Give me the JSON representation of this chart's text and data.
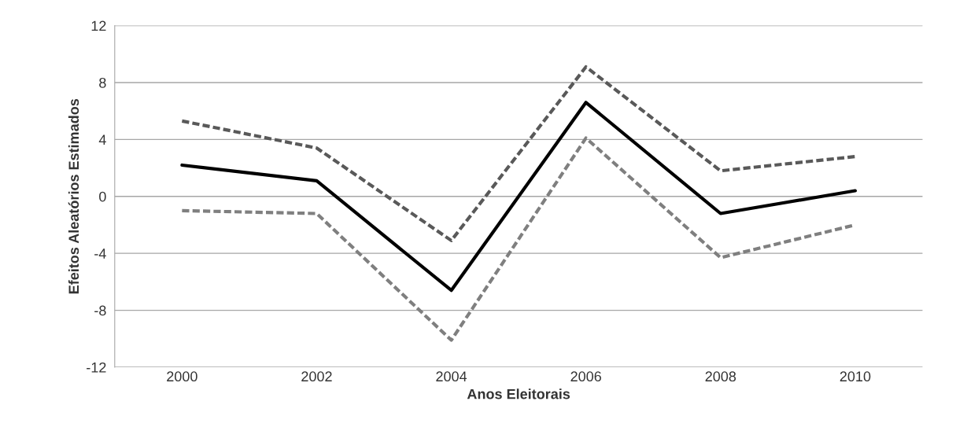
{
  "chart_data": {
    "type": "line",
    "xlabel": "Anos Eleitorais",
    "ylabel": "Efeitos Aleatórios Estimados",
    "categories": [
      "2000",
      "2002",
      "2004",
      "2006",
      "2008",
      "2010"
    ],
    "series": [
      {
        "color": "#595959",
        "line_style": "dashed",
        "values": [
          5.3,
          3.4,
          -3.1,
          9.1,
          1.8,
          2.8
        ]
      },
      {
        "color": "#000000",
        "line_style": "solid",
        "values": [
          2.2,
          1.1,
          -6.6,
          6.6,
          -1.2,
          0.4
        ]
      },
      {
        "color": "#7f7f7f",
        "line_style": "dashed",
        "values": [
          -1.0,
          -1.2,
          -10.1,
          4.1,
          -4.3,
          -2.0
        ]
      }
    ],
    "ylim": [
      -12,
      12
    ],
    "yticks": [
      -12,
      -8,
      -4,
      0,
      4,
      8,
      12
    ],
    "grid": "y",
    "marker": "none"
  }
}
